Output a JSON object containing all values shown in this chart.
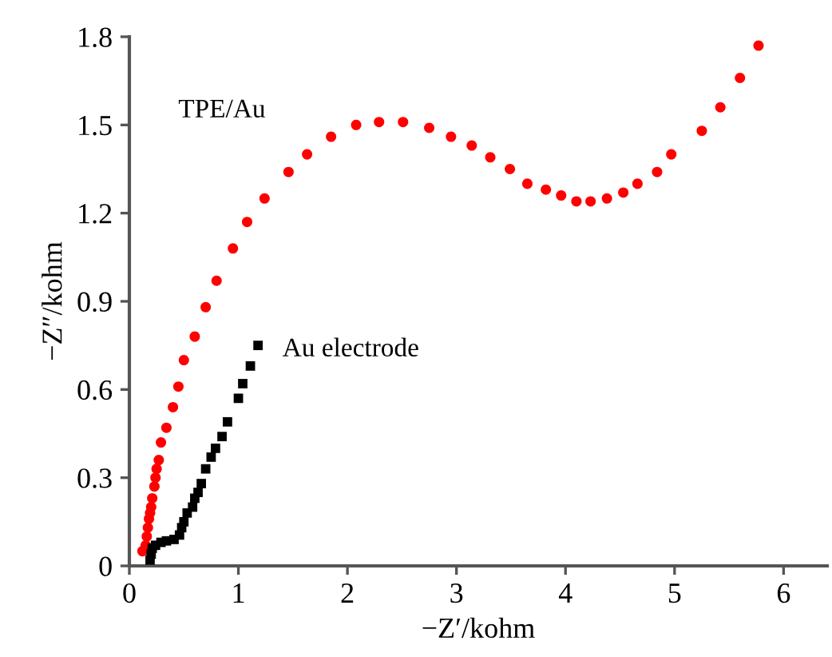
{
  "chart_data": {
    "type": "scatter",
    "xlabel": "−Z′/kohm",
    "ylabel": "−Z″/kohm",
    "xlim": [
      0,
      6.4
    ],
    "xticks": [
      0,
      1,
      2,
      3,
      4,
      5,
      6
    ],
    "ylim": [
      0,
      1.8
    ],
    "yticks": [
      0,
      0.3,
      0.6,
      0.9,
      1.2,
      1.5,
      1.8
    ],
    "grid": false,
    "legend": false,
    "series": [
      {
        "name": "TPE/Au",
        "color": "#ff0000",
        "marker": "circle",
        "x": [
          0.12,
          0.15,
          0.16,
          0.17,
          0.18,
          0.19,
          0.2,
          0.21,
          0.23,
          0.24,
          0.25,
          0.27,
          0.29,
          0.34,
          0.4,
          0.45,
          0.5,
          0.6,
          0.7,
          0.8,
          0.95,
          1.08,
          1.24,
          1.46,
          1.63,
          1.85,
          2.08,
          2.29,
          2.51,
          2.75,
          2.95,
          3.14,
          3.31,
          3.49,
          3.65,
          3.82,
          3.96,
          4.1,
          4.23,
          4.38,
          4.53,
          4.66,
          4.84,
          4.97,
          5.25,
          5.42,
          5.6,
          5.77
        ],
        "values": [
          0.05,
          0.07,
          0.1,
          0.13,
          0.16,
          0.18,
          0.2,
          0.23,
          0.27,
          0.3,
          0.33,
          0.36,
          0.42,
          0.47,
          0.54,
          0.61,
          0.7,
          0.78,
          0.88,
          0.97,
          1.08,
          1.17,
          1.25,
          1.34,
          1.4,
          1.46,
          1.5,
          1.51,
          1.51,
          1.49,
          1.46,
          1.43,
          1.39,
          1.35,
          1.3,
          1.28,
          1.26,
          1.24,
          1.24,
          1.25,
          1.27,
          1.3,
          1.34,
          1.4,
          1.48,
          1.56,
          1.66,
          1.77
        ]
      },
      {
        "name": "Au electrode",
        "color": "#000000",
        "marker": "square",
        "x": [
          0.19,
          0.2,
          0.21,
          0.24,
          0.29,
          0.34,
          0.41,
          0.46,
          0.48,
          0.5,
          0.53,
          0.58,
          0.6,
          0.63,
          0.66,
          0.7,
          0.75,
          0.79,
          0.85,
          0.9,
          1.0,
          1.04,
          1.11,
          1.18
        ],
        "values": [
          0.02,
          0.04,
          0.06,
          0.07,
          0.08,
          0.085,
          0.09,
          0.105,
          0.13,
          0.15,
          0.18,
          0.2,
          0.23,
          0.25,
          0.28,
          0.33,
          0.37,
          0.4,
          0.44,
          0.49,
          0.57,
          0.62,
          0.68,
          0.75
        ]
      }
    ]
  }
}
